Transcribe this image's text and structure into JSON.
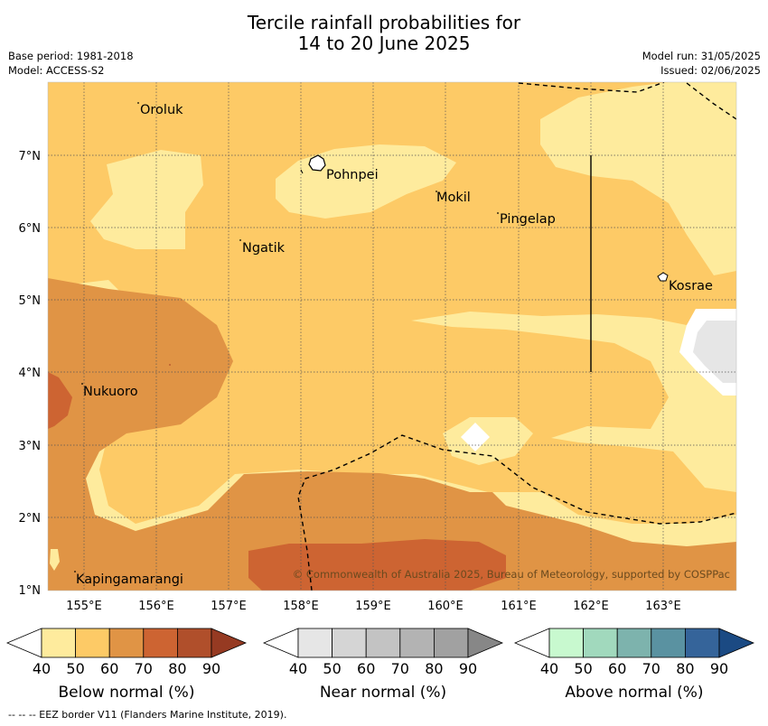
{
  "title_line1": "Tercile rainfall probabilities for",
  "title_line2": "14 to 20 June 2025",
  "meta": {
    "base_period": "Base period: 1981-2018",
    "model": "Model: ACCESS-S2",
    "model_run": "Model run: 31/05/2025",
    "issued": "Issued: 02/06/2025"
  },
  "lat_labels": [
    "7°N",
    "6°N",
    "5°N",
    "4°N",
    "3°N",
    "2°N",
    "1°N"
  ],
  "lon_labels": [
    "155°E",
    "156°E",
    "157°E",
    "158°E",
    "159°E",
    "160°E",
    "161°E",
    "162°E",
    "163°E"
  ],
  "places": [
    {
      "name": "Oroluk"
    },
    {
      "name": "Pohnpei"
    },
    {
      "name": "Mokil"
    },
    {
      "name": "Pingelap"
    },
    {
      "name": "Ngatik"
    },
    {
      "name": "Kosrae"
    },
    {
      "name": "Nukuoro"
    },
    {
      "name": "Kapingamarangi"
    }
  ],
  "copyright": "© Commonwealth of Australia 2025, Bureau of Meteorology, supported by COSPPac",
  "colorbars": [
    {
      "title": "Below normal (%)",
      "ticks": [
        "40",
        "50",
        "60",
        "70",
        "80",
        "90"
      ],
      "colors": [
        "#ffffff",
        "#feeb9d",
        "#fdca66",
        "#e09445",
        "#cd6432",
        "#b04f2b",
        "#963a22"
      ]
    },
    {
      "title": "Near normal (%)",
      "ticks": [
        "40",
        "50",
        "60",
        "70",
        "80",
        "90"
      ],
      "colors": [
        "#ffffff",
        "#e6e6e6",
        "#d5d5d5",
        "#c3c3c3",
        "#b3b3b3",
        "#a1a1a1",
        "#878787"
      ]
    },
    {
      "title": "Above normal (%)",
      "ticks": [
        "40",
        "50",
        "60",
        "70",
        "80",
        "90"
      ],
      "colors": [
        "#ffffff",
        "#c8f9cf",
        "#a1d9bd",
        "#7db3ad",
        "#5a92a1",
        "#35649a",
        "#1b4a83"
      ]
    }
  ],
  "footnote": "--  --  -- EEZ border V11 (Flanders Marine Institute, 2019)."
}
